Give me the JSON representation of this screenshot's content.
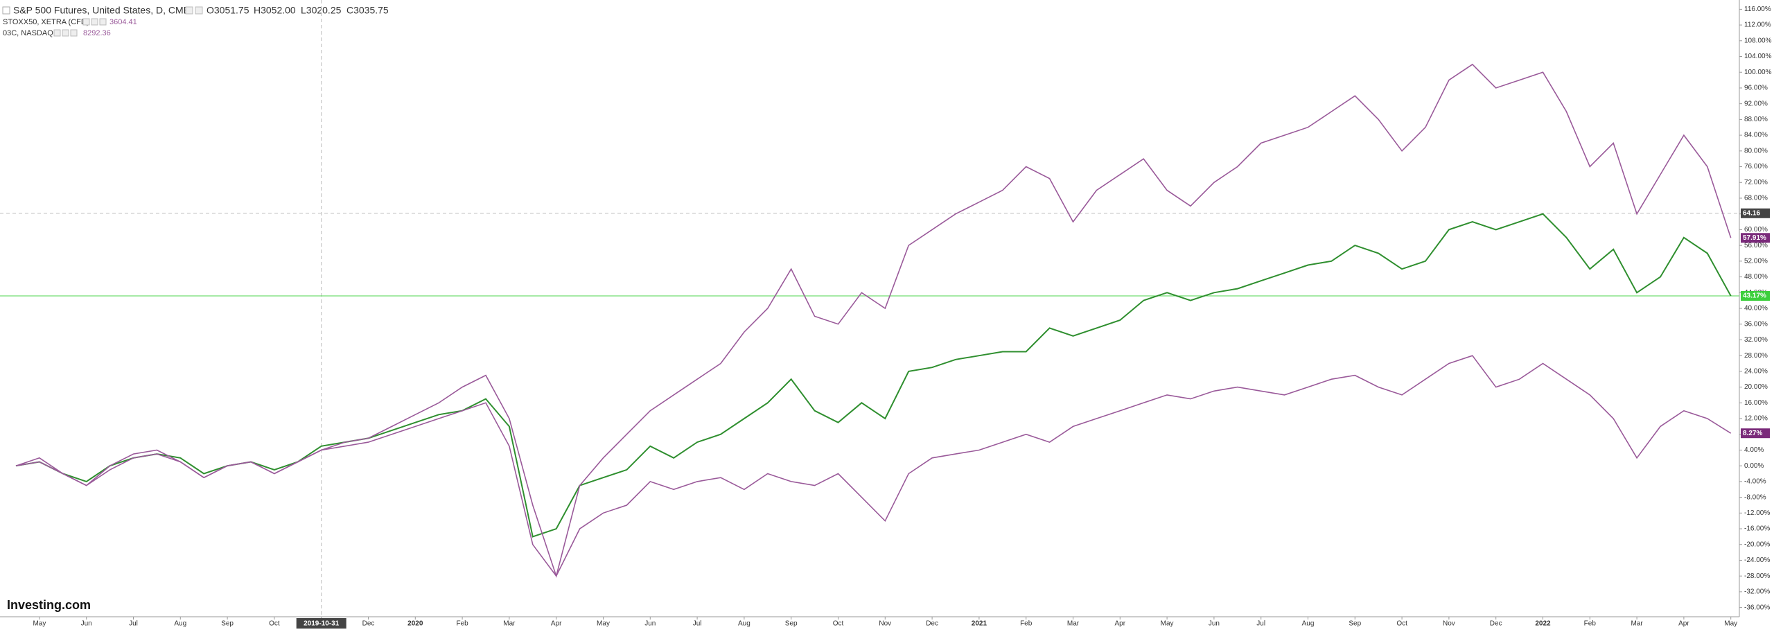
{
  "chart_data": {
    "type": "line",
    "header": {
      "symbol": "S&P 500 Futures, United States, D, CME",
      "ohlc": [
        "O3051.75",
        "H3052.00",
        "L3020.25",
        "C3035.75"
      ]
    },
    "logo": "Investing.com",
    "categories": [
      null,
      "May",
      null,
      "Jun",
      null,
      "Jul",
      null,
      "Aug",
      null,
      "Sep",
      null,
      "Oct",
      null,
      "2019-10-31",
      null,
      "Dec",
      null,
      "2020",
      null,
      "Feb",
      null,
      "Mar",
      null,
      "Apr",
      null,
      "May",
      null,
      "Jun",
      null,
      "Jul",
      null,
      "Aug",
      null,
      "Sep",
      null,
      "Oct",
      null,
      "Nov",
      null,
      "Dec",
      null,
      "2021",
      null,
      "Feb",
      null,
      "Mar",
      null,
      "Apr",
      null,
      "May",
      null,
      "Jun",
      null,
      "Jul",
      null,
      "Aug",
      null,
      "Sep",
      null,
      "Oct",
      null,
      "Nov",
      null,
      "Dec",
      null,
      "2022",
      null,
      "Feb",
      null,
      "Mar",
      null,
      "Apr",
      null,
      "May"
    ],
    "series": [
      {
        "name": "S&P 500 Futures",
        "color": "#2f8f2f",
        "price_line": true,
        "values": [
          0,
          1,
          -2,
          -4,
          0,
          2,
          3,
          2,
          -2,
          0,
          1,
          -1,
          1,
          5,
          6,
          7,
          9,
          11,
          13,
          14,
          17,
          10,
          -18,
          -16,
          -5,
          -3,
          -1,
          5,
          2,
          6,
          8,
          12,
          16,
          22,
          14,
          11,
          16,
          12,
          24,
          25,
          27,
          28,
          29,
          29,
          35,
          33,
          35,
          37,
          42,
          44,
          42,
          44,
          45,
          47,
          49,
          51,
          52,
          56,
          54,
          50,
          52,
          60,
          62,
          60,
          62,
          64,
          58,
          50,
          55,
          44,
          48,
          58,
          54,
          43.17
        ],
        "value_labels": [
          null,
          null,
          null,
          null,
          null,
          null,
          null,
          null,
          null,
          null,
          null,
          null,
          null,
          null,
          null,
          null,
          null,
          null,
          null,
          null,
          null,
          null,
          null,
          null,
          null,
          null,
          null,
          null,
          null,
          null,
          null,
          null,
          null,
          null,
          null,
          null,
          null,
          null,
          null,
          null,
          null,
          null,
          null,
          null,
          null,
          null,
          null,
          null,
          null,
          null,
          null,
          null,
          null,
          null,
          null,
          null,
          null,
          null,
          null,
          null,
          null,
          null,
          null,
          null,
          null,
          null,
          null,
          null,
          null,
          null,
          null,
          null,
          null,
          "43.17%"
        ]
      },
      {
        "name": "03C, NASDAQ",
        "last": 8292.36,
        "color": "#9a5a9a",
        "values": [
          0,
          2,
          -2,
          -5,
          0,
          3,
          4,
          1,
          -3,
          0,
          1,
          -2,
          1,
          4,
          6,
          7,
          10,
          13,
          16,
          20,
          23,
          12,
          -10,
          -28,
          -5,
          2,
          8,
          14,
          18,
          22,
          26,
          34,
          40,
          50,
          38,
          36,
          44,
          40,
          56,
          60,
          64,
          67,
          70,
          76,
          73,
          62,
          70,
          74,
          78,
          70,
          66,
          72,
          76,
          82,
          84,
          86,
          90,
          94,
          88,
          80,
          86,
          98,
          102,
          96,
          98,
          100,
          90,
          76,
          82,
          64,
          74,
          84,
          76,
          57.91
        ],
        "value_labels": [
          null,
          null,
          null,
          null,
          null,
          null,
          null,
          null,
          null,
          null,
          null,
          null,
          null,
          null,
          null,
          null,
          null,
          null,
          null,
          null,
          null,
          null,
          null,
          null,
          null,
          null,
          null,
          null,
          null,
          null,
          null,
          null,
          null,
          null,
          null,
          null,
          null,
          null,
          null,
          null,
          null,
          null,
          null,
          null,
          null,
          null,
          null,
          null,
          null,
          null,
          null,
          null,
          null,
          null,
          null,
          null,
          null,
          null,
          null,
          null,
          null,
          null,
          null,
          null,
          null,
          null,
          null,
          null,
          null,
          null,
          null,
          null,
          null,
          "57.91%"
        ]
      },
      {
        "name": "STOXX50, XETRA (CFD)",
        "last": 3604.41,
        "color": "#9a5a9a",
        "values": [
          0,
          1,
          -2,
          -5,
          -1,
          2,
          3,
          1,
          -3,
          0,
          1,
          -2,
          1,
          4,
          5,
          6,
          8,
          10,
          12,
          14,
          16,
          5,
          -20,
          -28,
          -16,
          -12,
          -10,
          -4,
          -6,
          -4,
          -3,
          -6,
          -2,
          -4,
          -5,
          -2,
          -8,
          -14,
          -2,
          2,
          3,
          4,
          6,
          8,
          6,
          10,
          12,
          14,
          16,
          18,
          17,
          19,
          20,
          19,
          18,
          20,
          22,
          23,
          20,
          18,
          22,
          26,
          28,
          20,
          22,
          26,
          22,
          18,
          12,
          2,
          10,
          14,
          12,
          8.27
        ],
        "value_labels": [
          null,
          null,
          null,
          null,
          null,
          null,
          null,
          null,
          null,
          null,
          null,
          null,
          null,
          null,
          null,
          null,
          null,
          null,
          null,
          null,
          null,
          null,
          null,
          null,
          null,
          null,
          null,
          null,
          null,
          null,
          null,
          null,
          null,
          null,
          null,
          null,
          null,
          null,
          null,
          null,
          null,
          null,
          null,
          null,
          null,
          null,
          null,
          null,
          null,
          null,
          null,
          null,
          null,
          null,
          null,
          null,
          null,
          null,
          null,
          null,
          null,
          null,
          null,
          null,
          null,
          null,
          null,
          null,
          null,
          null,
          null,
          null,
          null,
          "8.27%"
        ]
      }
    ],
    "crosshair": {
      "y": 64.16,
      "x_category": "2019-10-31"
    },
    "ylim": [
      -38,
      118
    ],
    "yticks": [
      {
        "value": -36,
        "label": "-36.00%"
      },
      {
        "value": -32,
        "label": "-32.00%"
      },
      {
        "value": -28,
        "label": "-28.00%"
      },
      {
        "value": -24,
        "label": "-24.00%"
      },
      {
        "value": -20,
        "label": "-20.00%"
      },
      {
        "value": -16,
        "label": "-16.00%"
      },
      {
        "value": -12,
        "label": "-12.00%"
      },
      {
        "value": -8,
        "label": "-8.00%"
      },
      {
        "value": -4,
        "label": "-4.00%"
      },
      {
        "value": 0,
        "label": "0.00%"
      },
      {
        "value": 4,
        "label": "4.00%"
      },
      {
        "value": 8,
        "label": "8.00%"
      },
      {
        "value": 12,
        "label": "12.00%"
      },
      {
        "value": 16,
        "label": "16.00%"
      },
      {
        "value": 20,
        "label": "20.00%"
      },
      {
        "value": 24,
        "label": "24.00%"
      },
      {
        "value": 28,
        "label": "28.00%"
      },
      {
        "value": 32,
        "label": "32.00%"
      },
      {
        "value": 36,
        "label": "36.00%"
      },
      {
        "value": 40,
        "label": "40.00%"
      },
      {
        "value": 44,
        "label": "44.00%"
      },
      {
        "value": 48,
        "label": "48.00%"
      },
      {
        "value": 52,
        "label": "52.00%"
      },
      {
        "value": 56,
        "label": "56.00%"
      },
      {
        "value": 60,
        "label": "60.00%"
      },
      {
        "value": 64,
        "label": "64.00%"
      },
      {
        "value": 68,
        "label": "68.00%"
      },
      {
        "value": 72,
        "label": "72.00%"
      },
      {
        "value": 76,
        "label": "76.00%"
      },
      {
        "value": 80,
        "label": "80.00%"
      },
      {
        "value": 84,
        "label": "84.00%"
      },
      {
        "value": 88,
        "label": "88.00%"
      },
      {
        "value": 92,
        "label": "92.00%"
      },
      {
        "value": 96,
        "label": "96.00%"
      },
      {
        "value": 100,
        "label": "100.00%"
      },
      {
        "value": 104,
        "label": "104.00%"
      },
      {
        "value": 108,
        "label": "108.00%"
      },
      {
        "value": 112,
        "label": "112.00%"
      },
      {
        "value": 116,
        "label": "116.00%"
      }
    ],
    "grid": false
  }
}
